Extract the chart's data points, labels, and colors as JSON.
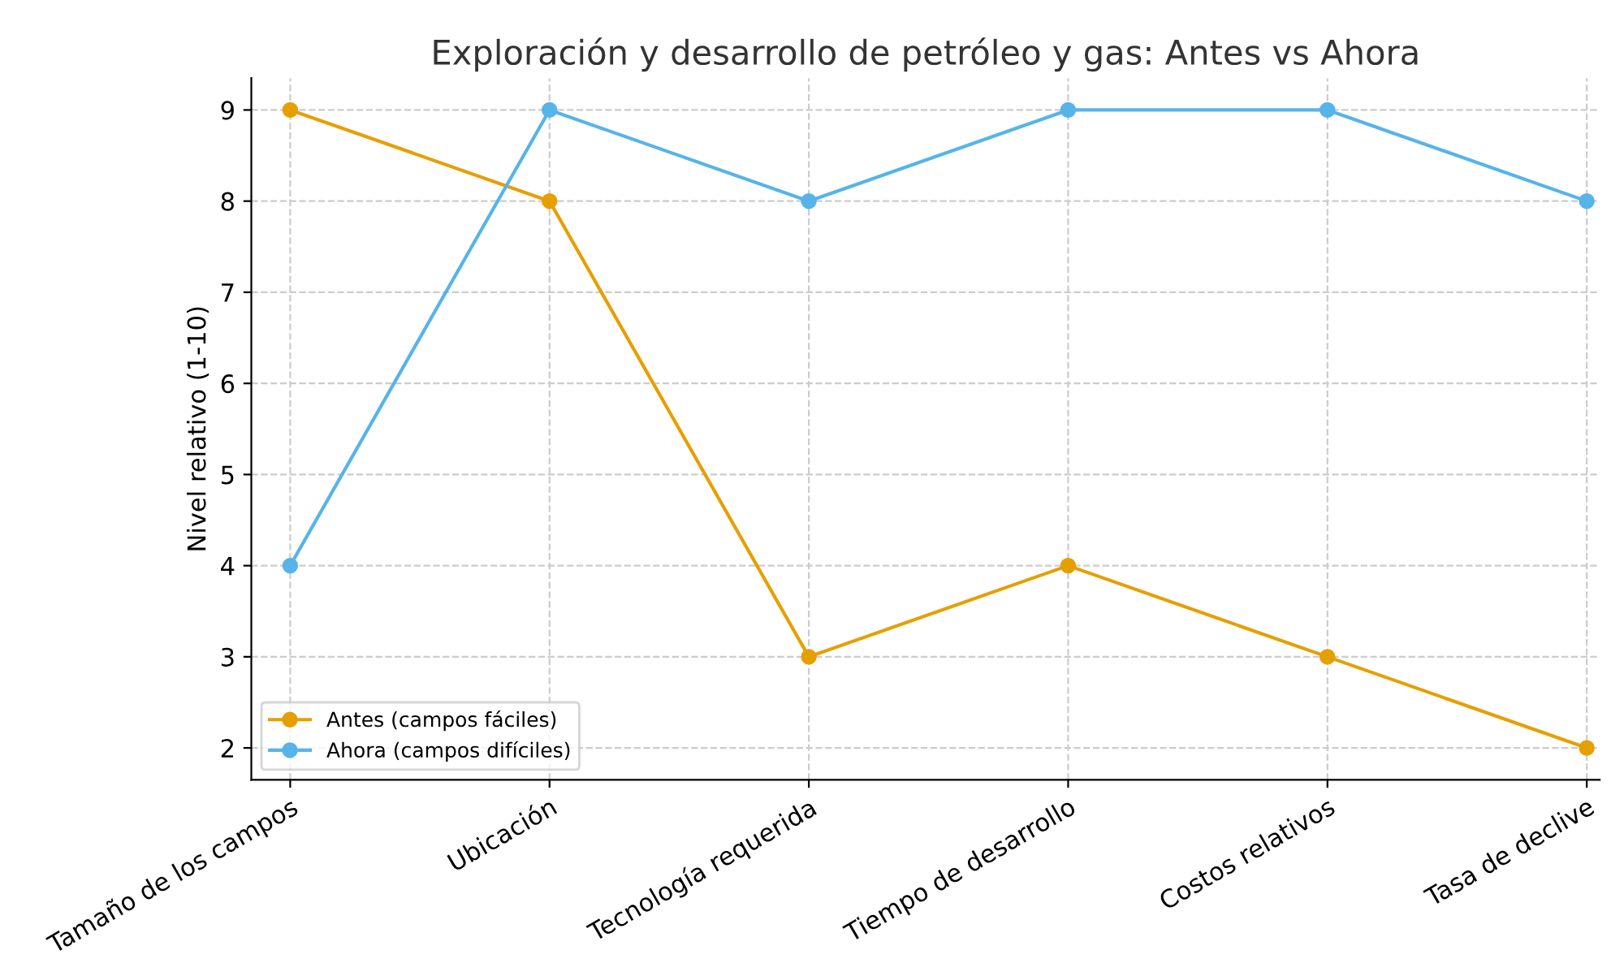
{
  "chart_data": {
    "type": "line",
    "title": "Exploración y desarrollo de petróleo y gas: Antes vs Ahora",
    "ylabel": "Nivel relativo (1-10)",
    "categories": [
      "Tamaño de los campos",
      "Ubicación",
      "Tecnología requerida",
      "Tiempo de desarrollo",
      "Costos relativos",
      "Tasa de declive"
    ],
    "series": [
      {
        "name": "Antes (campos fáciles)",
        "color": "#e69f00",
        "values": [
          9,
          8,
          3,
          4,
          3,
          2
        ]
      },
      {
        "name": "Ahora (campos difíciles)",
        "color": "#56b4e9",
        "values": [
          4,
          9,
          8,
          9,
          9,
          8
        ]
      }
    ],
    "ylim": [
      1.65,
      9.35
    ],
    "yticks": [
      2,
      3,
      4,
      5,
      6,
      7,
      8,
      9
    ],
    "grid": true,
    "legend": "bottom left",
    "marker": "circle",
    "line_style": "solid"
  }
}
